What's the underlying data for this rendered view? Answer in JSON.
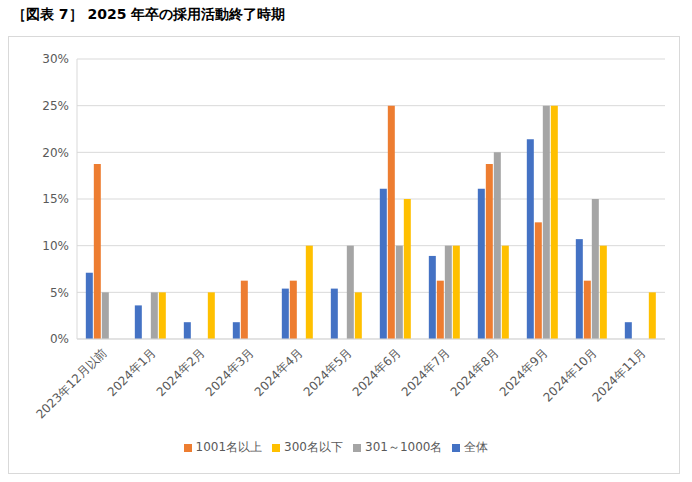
{
  "chart_data": {
    "type": "bar",
    "title": "［図表 7］ 2025 年卒の採用活動終了時期",
    "categories": [
      "2023年12月以前",
      "2024年1月",
      "2024年2月",
      "2024年3月",
      "2024年4月",
      "2024年5月",
      "2024年6月",
      "2024年7月",
      "2024年8月",
      "2024年9月",
      "2024年10月",
      "2024年11月"
    ],
    "series": [
      {
        "name": "全体",
        "color": "#4472c4",
        "values": [
          7.1,
          3.6,
          1.8,
          1.8,
          5.4,
          5.4,
          16.1,
          8.9,
          16.1,
          21.4,
          10.7,
          1.8
        ]
      },
      {
        "name": "1001名以上",
        "color": "#ed7d31",
        "values": [
          18.75,
          0,
          0,
          6.25,
          6.25,
          0,
          25,
          6.25,
          18.75,
          12.5,
          6.25,
          0
        ]
      },
      {
        "name": "301～1000名",
        "color": "#a5a5a5",
        "values": [
          5,
          5,
          0,
          0,
          0,
          10,
          10,
          10,
          20,
          25,
          15,
          0
        ]
      },
      {
        "name": "300名以下",
        "color": "#ffc000",
        "values": [
          0,
          5,
          5,
          0,
          10,
          5,
          15,
          10,
          10,
          25,
          10,
          5
        ]
      }
    ],
    "ylim": [
      0,
      30
    ],
    "yticks": [
      {
        "value": 0,
        "label": "0%"
      },
      {
        "value": 5,
        "label": "5%"
      },
      {
        "value": 10,
        "label": "10%"
      },
      {
        "value": 15,
        "label": "15%"
      },
      {
        "value": 20,
        "label": "20%"
      },
      {
        "value": 25,
        "label": "25%"
      },
      {
        "value": 30,
        "label": "30%"
      }
    ],
    "grid": true,
    "legend": "bottom"
  }
}
